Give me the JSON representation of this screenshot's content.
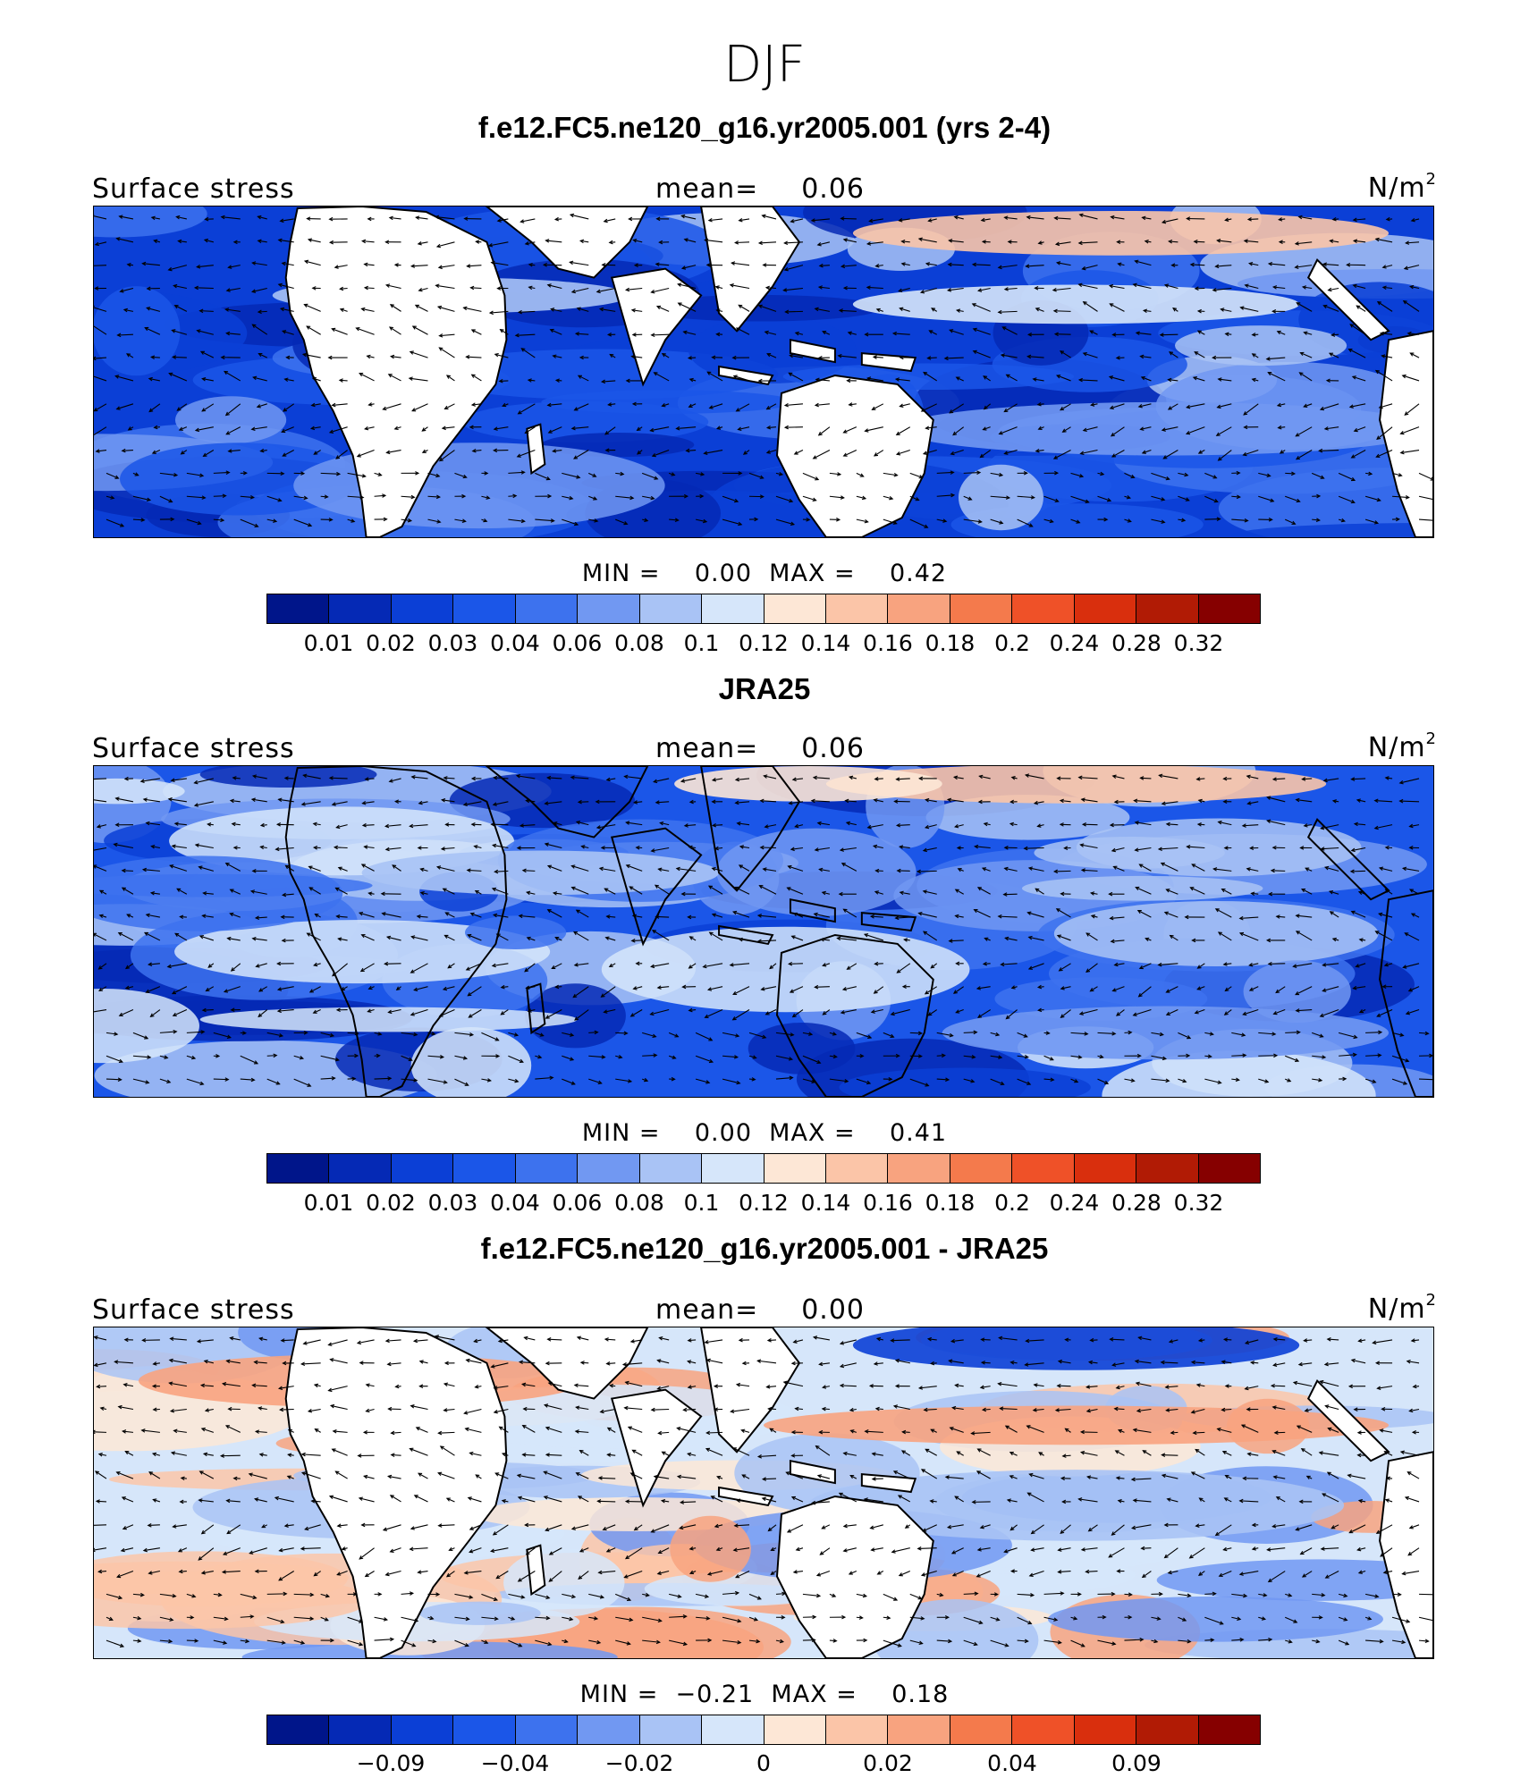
{
  "figure": {
    "season": "DJF"
  },
  "colorbar_colors": [
    "#00158a",
    "#0529b5",
    "#0b3fd6",
    "#1b56e8",
    "#3d72ee",
    "#7198f2",
    "#a9c3f5",
    "#d6e6fa",
    "#fde7d6",
    "#fbc5a8",
    "#f8a37f",
    "#f47a4c",
    "#ef5128",
    "#d92f0d",
    "#b11b05",
    "#860000"
  ],
  "colors": {
    "land": "#ffffff",
    "coast": "#000000",
    "arrows": "#000000"
  },
  "panels": [
    {
      "title": "f.e12.FC5.ne120_g16.yr2005.001 (yrs 2-4)",
      "variable": "Surface stress",
      "mean_label": "mean=",
      "mean_value": "0.06",
      "units": "N/m",
      "units_exp": "2",
      "minmax": "MIN =    0.00  MAX =    0.42",
      "colorbar_ticks": [
        "0.01",
        "0.02",
        "0.03",
        "0.04",
        "0.06",
        "0.08",
        "0.1",
        "0.12",
        "0.14",
        "0.16",
        "0.18",
        "0.2",
        "0.24",
        "0.28",
        "0.32"
      ]
    },
    {
      "title": "JRA25",
      "variable": "Surface stress",
      "mean_label": "mean=",
      "mean_value": "0.06",
      "units": "N/m",
      "units_exp": "2",
      "minmax": "MIN =    0.00  MAX =    0.41",
      "colorbar_ticks": [
        "0.01",
        "0.02",
        "0.03",
        "0.04",
        "0.06",
        "0.08",
        "0.1",
        "0.12",
        "0.14",
        "0.16",
        "0.18",
        "0.2",
        "0.24",
        "0.28",
        "0.32"
      ]
    },
    {
      "title": "f.e12.FC5.ne120_g16.yr2005.001 - JRA25",
      "variable": "Surface stress",
      "mean_label": "mean=",
      "mean_value": "0.00",
      "units": "N/m",
      "units_exp": "2",
      "minmax": "MIN =  −0.21  MAX =    0.18",
      "colorbar_ticks": [
        "−0.09",
        "−0.04",
        "−0.02",
        "0",
        "0.02",
        "0.04",
        "0.09"
      ]
    }
  ]
}
